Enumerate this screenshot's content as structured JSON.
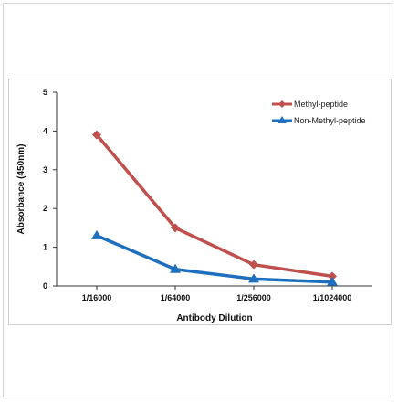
{
  "chart_data": {
    "type": "line",
    "categories": [
      "1/16000",
      "1/64000",
      "1/256000",
      "1/1024000"
    ],
    "series": [
      {
        "name": "Methyl-peptide",
        "color": "#c0504d",
        "marker": "diamond",
        "values": [
          3.9,
          1.5,
          0.55,
          0.25
        ]
      },
      {
        "name": "Non-Methyl-peptide",
        "color": "#1f6fbf",
        "marker": "triangle",
        "values": [
          1.3,
          0.43,
          0.18,
          0.1
        ]
      }
    ],
    "xlabel": "Antibody Dilution",
    "ylabel": "Absorbance (450nm)",
    "ylim": [
      0,
      5
    ],
    "yticks": [
      0,
      1,
      2,
      3,
      4,
      5
    ],
    "grid": false,
    "legend_position": "top-right"
  }
}
